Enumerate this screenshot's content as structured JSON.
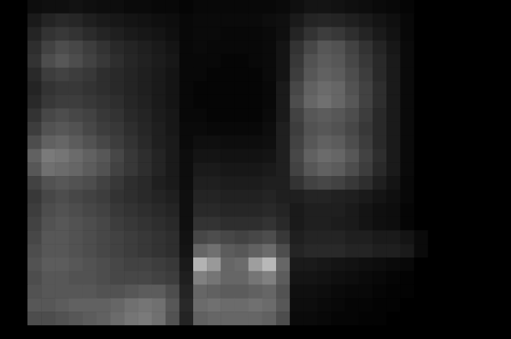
{
  "chart_data": {
    "type": "heatmap",
    "tick_labels": false,
    "color": "#ffffff",
    "zlim": [
      0,
      100
    ],
    "cells": [
      [
        0,
        0,
        5,
        6,
        6,
        7,
        6,
        5,
        5,
        4,
        4,
        3,
        3,
        2,
        3,
        3,
        3,
        3,
        3,
        3,
        4,
        6,
        8,
        8,
        7,
        6,
        5,
        4,
        3,
        2,
        0,
        0,
        0,
        0,
        0,
        0,
        0
      ],
      [
        0,
        0,
        10,
        14,
        16,
        15,
        12,
        10,
        9,
        8,
        7,
        6,
        5,
        3,
        4,
        4,
        4,
        4,
        4,
        5,
        6,
        10,
        14,
        15,
        14,
        12,
        10,
        8,
        6,
        3,
        0,
        0,
        0,
        0,
        0,
        0,
        0
      ],
      [
        0,
        0,
        14,
        20,
        22,
        20,
        17,
        14,
        12,
        10,
        9,
        8,
        6,
        3,
        4,
        4,
        3,
        3,
        3,
        4,
        6,
        14,
        20,
        24,
        22,
        18,
        14,
        10,
        7,
        3,
        0,
        0,
        0,
        0,
        0,
        0,
        0
      ],
      [
        0,
        0,
        18,
        26,
        30,
        28,
        24,
        20,
        16,
        14,
        12,
        10,
        8,
        3,
        4,
        3,
        3,
        3,
        3,
        4,
        8,
        20,
        28,
        34,
        32,
        26,
        20,
        14,
        9,
        4,
        0,
        0,
        0,
        0,
        0,
        0,
        0
      ],
      [
        0,
        0,
        20,
        30,
        34,
        30,
        26,
        22,
        18,
        15,
        13,
        11,
        9,
        3,
        3,
        3,
        2,
        2,
        3,
        4,
        8,
        22,
        32,
        36,
        34,
        28,
        22,
        16,
        10,
        4,
        0,
        0,
        0,
        0,
        0,
        0,
        0
      ],
      [
        0,
        0,
        16,
        24,
        26,
        24,
        22,
        18,
        16,
        14,
        12,
        10,
        8,
        3,
        3,
        2,
        2,
        2,
        2,
        4,
        8,
        24,
        34,
        38,
        36,
        30,
        24,
        16,
        10,
        4,
        0,
        0,
        0,
        0,
        0,
        0,
        0
      ],
      [
        0,
        0,
        14,
        20,
        22,
        22,
        20,
        18,
        16,
        14,
        12,
        10,
        8,
        3,
        2,
        2,
        2,
        2,
        2,
        3,
        10,
        28,
        38,
        42,
        40,
        32,
        26,
        18,
        10,
        4,
        0,
        0,
        0,
        0,
        0,
        0,
        0
      ],
      [
        0,
        0,
        16,
        22,
        24,
        24,
        22,
        20,
        18,
        15,
        13,
        10,
        8,
        3,
        2,
        2,
        2,
        2,
        2,
        3,
        10,
        30,
        40,
        44,
        40,
        34,
        26,
        18,
        10,
        4,
        0,
        0,
        0,
        0,
        0,
        0,
        0
      ],
      [
        0,
        0,
        20,
        28,
        30,
        28,
        26,
        22,
        20,
        16,
        14,
        11,
        9,
        3,
        3,
        2,
        2,
        2,
        2,
        4,
        10,
        26,
        34,
        36,
        34,
        30,
        24,
        16,
        10,
        4,
        0,
        0,
        0,
        0,
        0,
        0,
        0
      ],
      [
        0,
        0,
        24,
        32,
        34,
        32,
        28,
        24,
        22,
        18,
        15,
        12,
        9,
        4,
        4,
        3,
        3,
        3,
        3,
        5,
        12,
        24,
        32,
        34,
        32,
        28,
        22,
        16,
        10,
        4,
        0,
        0,
        0,
        0,
        0,
        0,
        0
      ],
      [
        0,
        0,
        30,
        38,
        40,
        36,
        32,
        28,
        24,
        20,
        16,
        12,
        10,
        4,
        6,
        6,
        5,
        5,
        5,
        6,
        12,
        26,
        34,
        38,
        36,
        30,
        24,
        16,
        10,
        4,
        0,
        0,
        0,
        0,
        0,
        0,
        0
      ],
      [
        0,
        0,
        38,
        48,
        46,
        42,
        38,
        34,
        28,
        22,
        18,
        14,
        10,
        5,
        8,
        8,
        7,
        7,
        7,
        8,
        12,
        28,
        38,
        42,
        40,
        34,
        26,
        18,
        10,
        4,
        0,
        0,
        0,
        0,
        0,
        0,
        0
      ],
      [
        0,
        0,
        34,
        44,
        42,
        40,
        36,
        32,
        26,
        22,
        18,
        14,
        10,
        5,
        10,
        10,
        9,
        9,
        9,
        10,
        12,
        26,
        34,
        38,
        36,
        30,
        24,
        16,
        10,
        4,
        0,
        0,
        0,
        0,
        0,
        0,
        0
      ],
      [
        0,
        0,
        26,
        32,
        34,
        32,
        30,
        26,
        22,
        18,
        16,
        12,
        10,
        5,
        12,
        12,
        11,
        11,
        11,
        12,
        12,
        20,
        26,
        28,
        26,
        22,
        18,
        12,
        8,
        3,
        0,
        0,
        0,
        0,
        0,
        0,
        0
      ],
      [
        0,
        0,
        22,
        28,
        30,
        28,
        26,
        24,
        20,
        18,
        16,
        14,
        12,
        6,
        14,
        14,
        13,
        13,
        13,
        14,
        12,
        12,
        14,
        14,
        13,
        12,
        10,
        8,
        6,
        3,
        0,
        0,
        0,
        0,
        0,
        0,
        0
      ],
      [
        0,
        0,
        24,
        30,
        32,
        30,
        28,
        26,
        22,
        20,
        18,
        16,
        14,
        6,
        16,
        16,
        15,
        15,
        15,
        16,
        14,
        10,
        12,
        12,
        12,
        10,
        8,
        6,
        5,
        2,
        0,
        0,
        0,
        0,
        0,
        0,
        0
      ],
      [
        0,
        0,
        26,
        32,
        34,
        32,
        30,
        28,
        24,
        22,
        20,
        18,
        16,
        6,
        20,
        20,
        18,
        18,
        18,
        20,
        16,
        10,
        12,
        12,
        11,
        10,
        8,
        6,
        5,
        2,
        0,
        0,
        0,
        0,
        0,
        0,
        0
      ],
      [
        0,
        0,
        28,
        34,
        34,
        32,
        30,
        28,
        26,
        24,
        22,
        20,
        18,
        7,
        28,
        30,
        28,
        26,
        28,
        30,
        22,
        12,
        14,
        14,
        14,
        12,
        12,
        10,
        10,
        8,
        4,
        0,
        0,
        0,
        0,
        0,
        0
      ],
      [
        0,
        0,
        30,
        34,
        34,
        32,
        30,
        28,
        26,
        24,
        22,
        20,
        18,
        8,
        40,
        44,
        36,
        34,
        38,
        42,
        30,
        14,
        16,
        16,
        16,
        14,
        14,
        12,
        12,
        10,
        4,
        0,
        0,
        0,
        0,
        0,
        0
      ],
      [
        0,
        0,
        32,
        36,
        36,
        34,
        32,
        30,
        28,
        26,
        26,
        24,
        22,
        10,
        70,
        60,
        40,
        42,
        62,
        72,
        40,
        10,
        10,
        9,
        8,
        7,
        6,
        5,
        4,
        3,
        0,
        0,
        0,
        0,
        0,
        0,
        0
      ],
      [
        0,
        0,
        30,
        34,
        34,
        32,
        32,
        30,
        28,
        28,
        28,
        26,
        24,
        12,
        50,
        46,
        40,
        40,
        46,
        50,
        36,
        8,
        8,
        7,
        6,
        5,
        4,
        3,
        2,
        1,
        0,
        0,
        0,
        0,
        0,
        0,
        0
      ],
      [
        0,
        0,
        32,
        34,
        34,
        34,
        34,
        32,
        32,
        34,
        36,
        36,
        30,
        14,
        40,
        38,
        36,
        36,
        38,
        40,
        32,
        6,
        6,
        5,
        4,
        3,
        3,
        2,
        1,
        1,
        0,
        0,
        0,
        0,
        0,
        0,
        0
      ],
      [
        0,
        0,
        34,
        34,
        36,
        38,
        38,
        38,
        40,
        44,
        46,
        44,
        34,
        16,
        42,
        44,
        42,
        42,
        44,
        42,
        34,
        5,
        5,
        4,
        3,
        2,
        2,
        1,
        1,
        0,
        0,
        0,
        0,
        0,
        0,
        0,
        0
      ],
      [
        0,
        0,
        30,
        30,
        32,
        34,
        36,
        38,
        42,
        46,
        48,
        44,
        32,
        14,
        38,
        40,
        40,
        40,
        40,
        38,
        30,
        4,
        4,
        3,
        2,
        2,
        1,
        1,
        0,
        0,
        0,
        0,
        0,
        0,
        0,
        0,
        0
      ],
      [
        0,
        0,
        0,
        0,
        0,
        0,
        0,
        0,
        0,
        0,
        0,
        0,
        0,
        0,
        0,
        0,
        0,
        0,
        0,
        0,
        0,
        0,
        0,
        0,
        0,
        0,
        0,
        0,
        0,
        0,
        0,
        0,
        0,
        0,
        0,
        0,
        0
      ]
    ]
  }
}
